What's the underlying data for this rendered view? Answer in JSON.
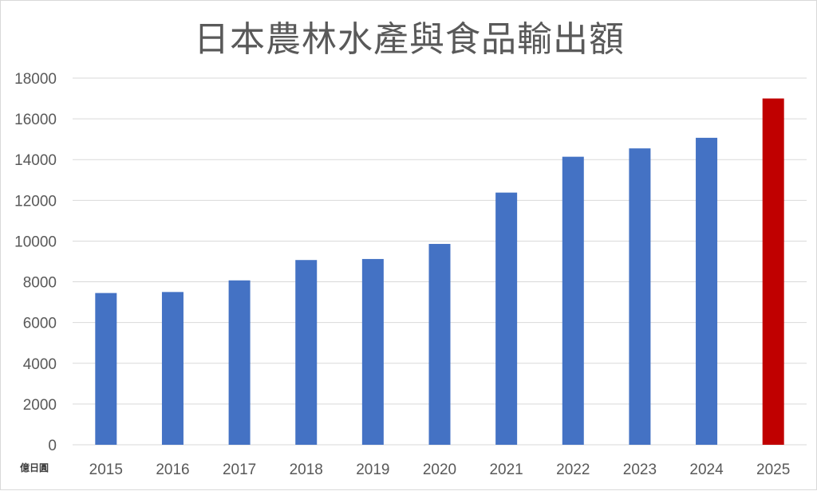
{
  "chart_data": {
    "type": "bar",
    "title": "日本農林水產與食品輸出額",
    "unit_label": "億日圓",
    "categories": [
      "2015",
      "2016",
      "2017",
      "2018",
      "2019",
      "2020",
      "2021",
      "2022",
      "2023",
      "2024",
      "2025"
    ],
    "values": [
      7450,
      7500,
      8070,
      9070,
      9120,
      9860,
      12380,
      14140,
      14550,
      15070,
      17000
    ],
    "ylim": [
      0,
      18000
    ],
    "yticks": [
      0,
      2000,
      4000,
      6000,
      8000,
      10000,
      12000,
      14000,
      16000,
      18000
    ],
    "grid": true,
    "legend": "none",
    "colors": {
      "bar": "#4472c4",
      "highlight": "#c00000",
      "grid": "#d9d9d9",
      "text": "#595959"
    },
    "highlight_categories": [
      "2025"
    ]
  }
}
